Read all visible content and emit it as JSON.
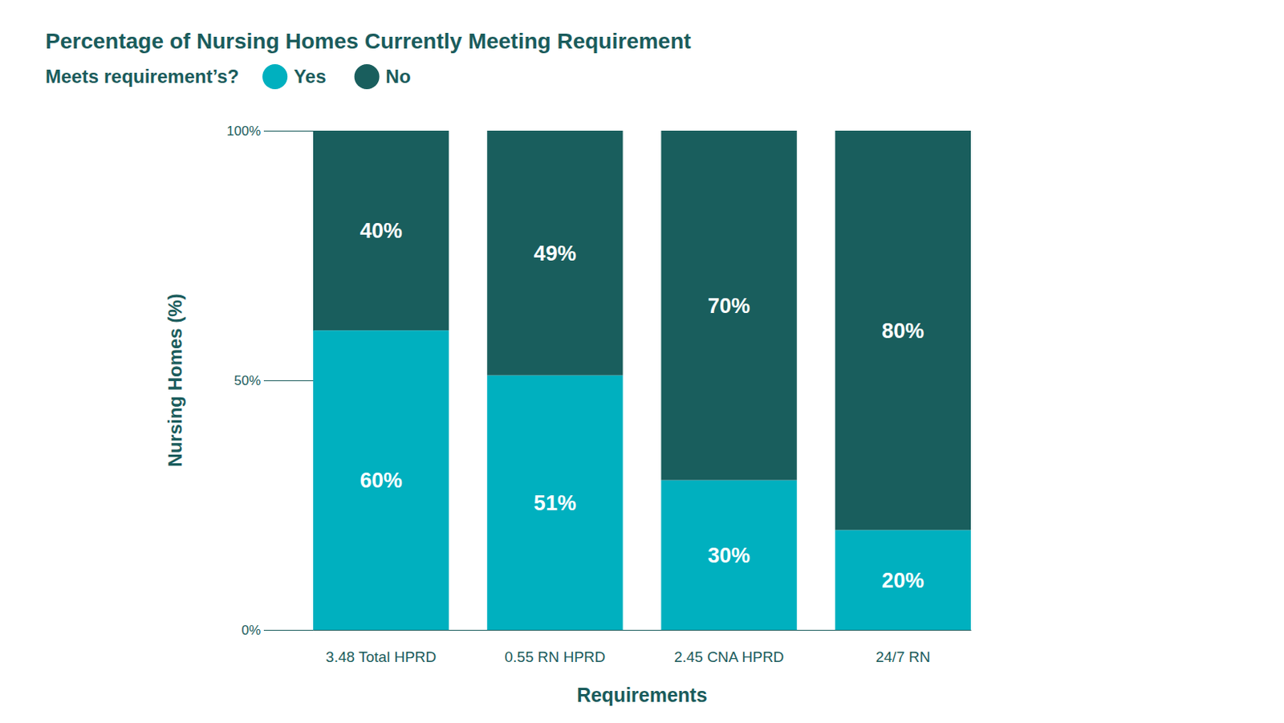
{
  "chart_data": {
    "type": "bar",
    "title": "Percentage of Nursing Homes Currently Meeting Requirement",
    "legend_title": "Meets requirement’s?",
    "x_label": "Requirements",
    "y_label": "Nursing Homes (%)",
    "categories": [
      "3.48 Total HPRD",
      "0.55 RN HPRD",
      "2.45 CNA HPRD",
      "24/7 RN"
    ],
    "series": [
      {
        "name": "Yes",
        "color": "#00b0bf",
        "values": [
          60,
          51,
          30,
          20
        ],
        "value_labels": [
          "60%",
          "51%",
          "30%",
          "20%"
        ]
      },
      {
        "name": "No",
        "color": "#195e5d",
        "values": [
          40,
          49,
          70,
          80
        ],
        "value_labels": [
          "40%",
          "49%",
          "70%",
          "80%"
        ]
      }
    ],
    "ylim": [
      0,
      100
    ],
    "yticks": [
      {
        "value": 0,
        "label": "0%"
      },
      {
        "value": 50,
        "label": "50%"
      },
      {
        "value": 100,
        "label": "100%"
      }
    ],
    "stacked": true,
    "data_labels": true,
    "legend": "top-left",
    "grid": false
  }
}
